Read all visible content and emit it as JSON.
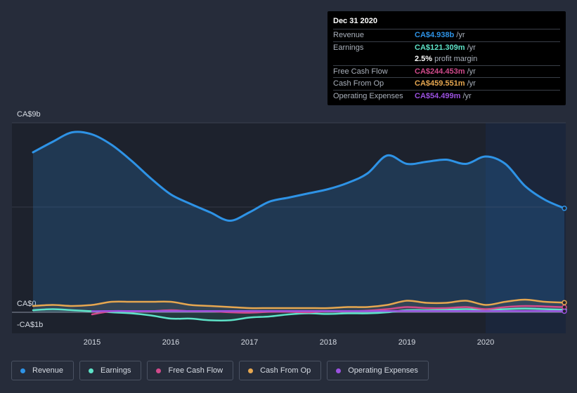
{
  "chart_data": {
    "type": "line",
    "ylim": [
      -1,
      9
    ],
    "y_top_label": "CA$9b",
    "y_zero_label": "CA$0",
    "y_bottom_label": "-CA$1b",
    "x_ticks": [
      2015,
      2016,
      2017,
      2018,
      2019,
      2020
    ],
    "x_range": [
      2014.25,
      2021.0
    ],
    "highlight_start": 2020.0,
    "series": [
      {
        "name": "Revenue",
        "color": "#2e93e6",
        "fill": true,
        "x": [
          2014.25,
          2014.5,
          2014.75,
          2015.0,
          2015.25,
          2015.5,
          2015.75,
          2016.0,
          2016.25,
          2016.5,
          2016.75,
          2017.0,
          2017.25,
          2017.5,
          2017.75,
          2018.0,
          2018.25,
          2018.5,
          2018.75,
          2019.0,
          2019.25,
          2019.5,
          2019.75,
          2020.0,
          2020.25,
          2020.5,
          2020.75,
          2021.0
        ],
        "values": [
          7.6,
          8.1,
          8.55,
          8.45,
          7.95,
          7.2,
          6.35,
          5.6,
          5.15,
          4.75,
          4.35,
          4.75,
          5.25,
          5.45,
          5.65,
          5.85,
          6.15,
          6.6,
          7.45,
          7.05,
          7.15,
          7.25,
          7.05,
          7.4,
          7.05,
          6.0,
          5.35,
          4.94
        ]
      },
      {
        "name": "Earnings",
        "color": "#5ee3c8",
        "fill": false,
        "x": [
          2014.25,
          2014.5,
          2014.75,
          2015.0,
          2015.25,
          2015.5,
          2015.75,
          2016.0,
          2016.25,
          2016.5,
          2016.75,
          2017.0,
          2017.25,
          2017.5,
          2017.75,
          2018.0,
          2018.25,
          2018.5,
          2018.75,
          2019.0,
          2019.25,
          2019.5,
          2019.75,
          2020.0,
          2020.25,
          2020.5,
          2020.75,
          2021.0
        ],
        "values": [
          0.1,
          0.15,
          0.1,
          0.05,
          0.0,
          -0.05,
          -0.15,
          -0.3,
          -0.3,
          -0.38,
          -0.38,
          -0.25,
          -0.2,
          -0.1,
          -0.05,
          -0.08,
          -0.05,
          -0.05,
          0.0,
          0.1,
          0.1,
          0.12,
          0.15,
          0.12,
          0.15,
          0.18,
          0.15,
          0.12
        ]
      },
      {
        "name": "Free Cash Flow",
        "color": "#d14a8b",
        "fill": false,
        "x": [
          2015.0,
          2015.25,
          2015.5,
          2015.75,
          2016.0,
          2016.25,
          2016.5,
          2016.75,
          2017.0,
          2017.25,
          2017.5,
          2017.75,
          2018.0,
          2018.25,
          2018.5,
          2018.75,
          2019.0,
          2019.25,
          2019.5,
          2019.75,
          2020.0,
          2020.25,
          2020.5,
          2020.75,
          2021.0
        ],
        "values": [
          -0.1,
          0.05,
          0.05,
          0.05,
          0.1,
          0.05,
          0.05,
          0.0,
          -0.02,
          0.02,
          0.02,
          0.0,
          0.05,
          0.05,
          0.08,
          0.15,
          0.25,
          0.2,
          0.2,
          0.25,
          0.15,
          0.25,
          0.3,
          0.28,
          0.24
        ]
      },
      {
        "name": "Cash From Op",
        "color": "#e6a750",
        "fill": false,
        "x": [
          2014.25,
          2014.5,
          2014.75,
          2015.0,
          2015.25,
          2015.5,
          2015.75,
          2016.0,
          2016.25,
          2016.5,
          2016.75,
          2017.0,
          2017.25,
          2017.5,
          2017.75,
          2018.0,
          2018.25,
          2018.5,
          2018.75,
          2019.0,
          2019.25,
          2019.5,
          2019.75,
          2020.0,
          2020.25,
          2020.5,
          2020.75,
          2021.0
        ],
        "values": [
          0.3,
          0.35,
          0.3,
          0.35,
          0.5,
          0.5,
          0.5,
          0.5,
          0.35,
          0.3,
          0.25,
          0.2,
          0.2,
          0.2,
          0.2,
          0.2,
          0.25,
          0.25,
          0.35,
          0.55,
          0.45,
          0.45,
          0.55,
          0.35,
          0.5,
          0.6,
          0.5,
          0.46
        ]
      },
      {
        "name": "Operating Expenses",
        "color": "#9b51e0",
        "fill": false,
        "x": [
          2015.0,
          2015.25,
          2015.5,
          2015.75,
          2016.0,
          2016.25,
          2016.5,
          2016.75,
          2017.0,
          2017.25,
          2017.5,
          2017.75,
          2018.0,
          2018.25,
          2018.5,
          2018.75,
          2019.0,
          2019.25,
          2019.5,
          2019.75,
          2020.0,
          2020.25,
          2020.5,
          2020.75,
          2021.0
        ],
        "values": [
          0.05,
          0.06,
          0.06,
          0.06,
          0.06,
          0.06,
          0.06,
          0.06,
          0.06,
          0.06,
          0.06,
          0.06,
          0.06,
          0.06,
          0.06,
          0.06,
          0.06,
          0.06,
          0.06,
          0.06,
          0.06,
          0.06,
          0.06,
          0.06,
          0.05
        ]
      }
    ]
  },
  "tooltip": {
    "date": "Dec 31 2020",
    "rows": [
      {
        "label": "Revenue",
        "value": "CA$4.938b",
        "unit": "/yr",
        "color": "#2e93e6"
      },
      {
        "label": "Earnings",
        "value": "CA$121.309m",
        "unit": "/yr",
        "color": "#5ee3c8"
      },
      {
        "label": "",
        "value": "2.5%",
        "unit": "profit margin",
        "color": "#ffffff"
      },
      {
        "label": "Free Cash Flow",
        "value": "CA$244.453m",
        "unit": "/yr",
        "color": "#d14a8b"
      },
      {
        "label": "Cash From Op",
        "value": "CA$459.551m",
        "unit": "/yr",
        "color": "#e6a750"
      },
      {
        "label": "Operating Expenses",
        "value": "CA$54.499m",
        "unit": "/yr",
        "color": "#9b51e0"
      }
    ]
  },
  "legend": [
    {
      "label": "Revenue",
      "color": "#2e93e6"
    },
    {
      "label": "Earnings",
      "color": "#5ee3c8"
    },
    {
      "label": "Free Cash Flow",
      "color": "#d14a8b"
    },
    {
      "label": "Cash From Op",
      "color": "#e6a750"
    },
    {
      "label": "Operating Expenses",
      "color": "#9b51e0"
    }
  ]
}
